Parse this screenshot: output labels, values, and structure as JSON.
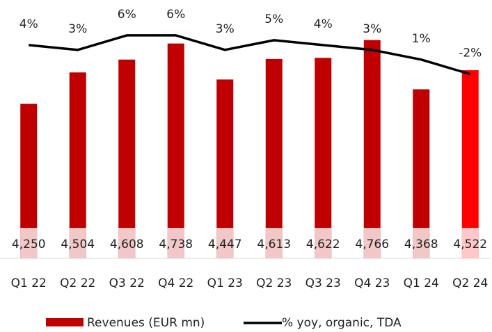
{
  "chart_data": {
    "type": "bar",
    "categories": [
      "Q1 22",
      "Q2 22",
      "Q3 22",
      "Q4 22",
      "Q1 23",
      "Q2 23",
      "Q3 23",
      "Q4 23",
      "Q1 24",
      "Q2 24"
    ],
    "series": [
      {
        "name": "Revenues (EUR mn)",
        "type": "bar",
        "color": "#c00000",
        "colors": [
          "#c00000",
          "#c00000",
          "#c00000",
          "#c00000",
          "#c00000",
          "#c00000",
          "#c00000",
          "#c00000",
          "#c00000",
          "#ff0000"
        ],
        "values": [
          4250,
          4504,
          4608,
          4738,
          4447,
          4613,
          4622,
          4766,
          4368,
          4522
        ],
        "value_labels": [
          "4,250",
          "4,504",
          "4,608",
          "4,738",
          "4,447",
          "4,613",
          "4,622",
          "4,766",
          "4,368",
          "4,522"
        ]
      },
      {
        "name": "% yoy, organic, TDA",
        "type": "line",
        "axis": "y2",
        "color": "#000000",
        "values": [
          4,
          3,
          6,
          6,
          3,
          5,
          4,
          3,
          1,
          -2
        ],
        "value_labels": [
          "4%",
          "3%",
          "6%",
          "6%",
          "3%",
          "5%",
          "4%",
          "3%",
          "1%",
          "-2%"
        ]
      }
    ],
    "ylim": [
      3000,
      5000
    ],
    "y2lim": [
      -40,
      11
    ],
    "legend": "bottom"
  }
}
